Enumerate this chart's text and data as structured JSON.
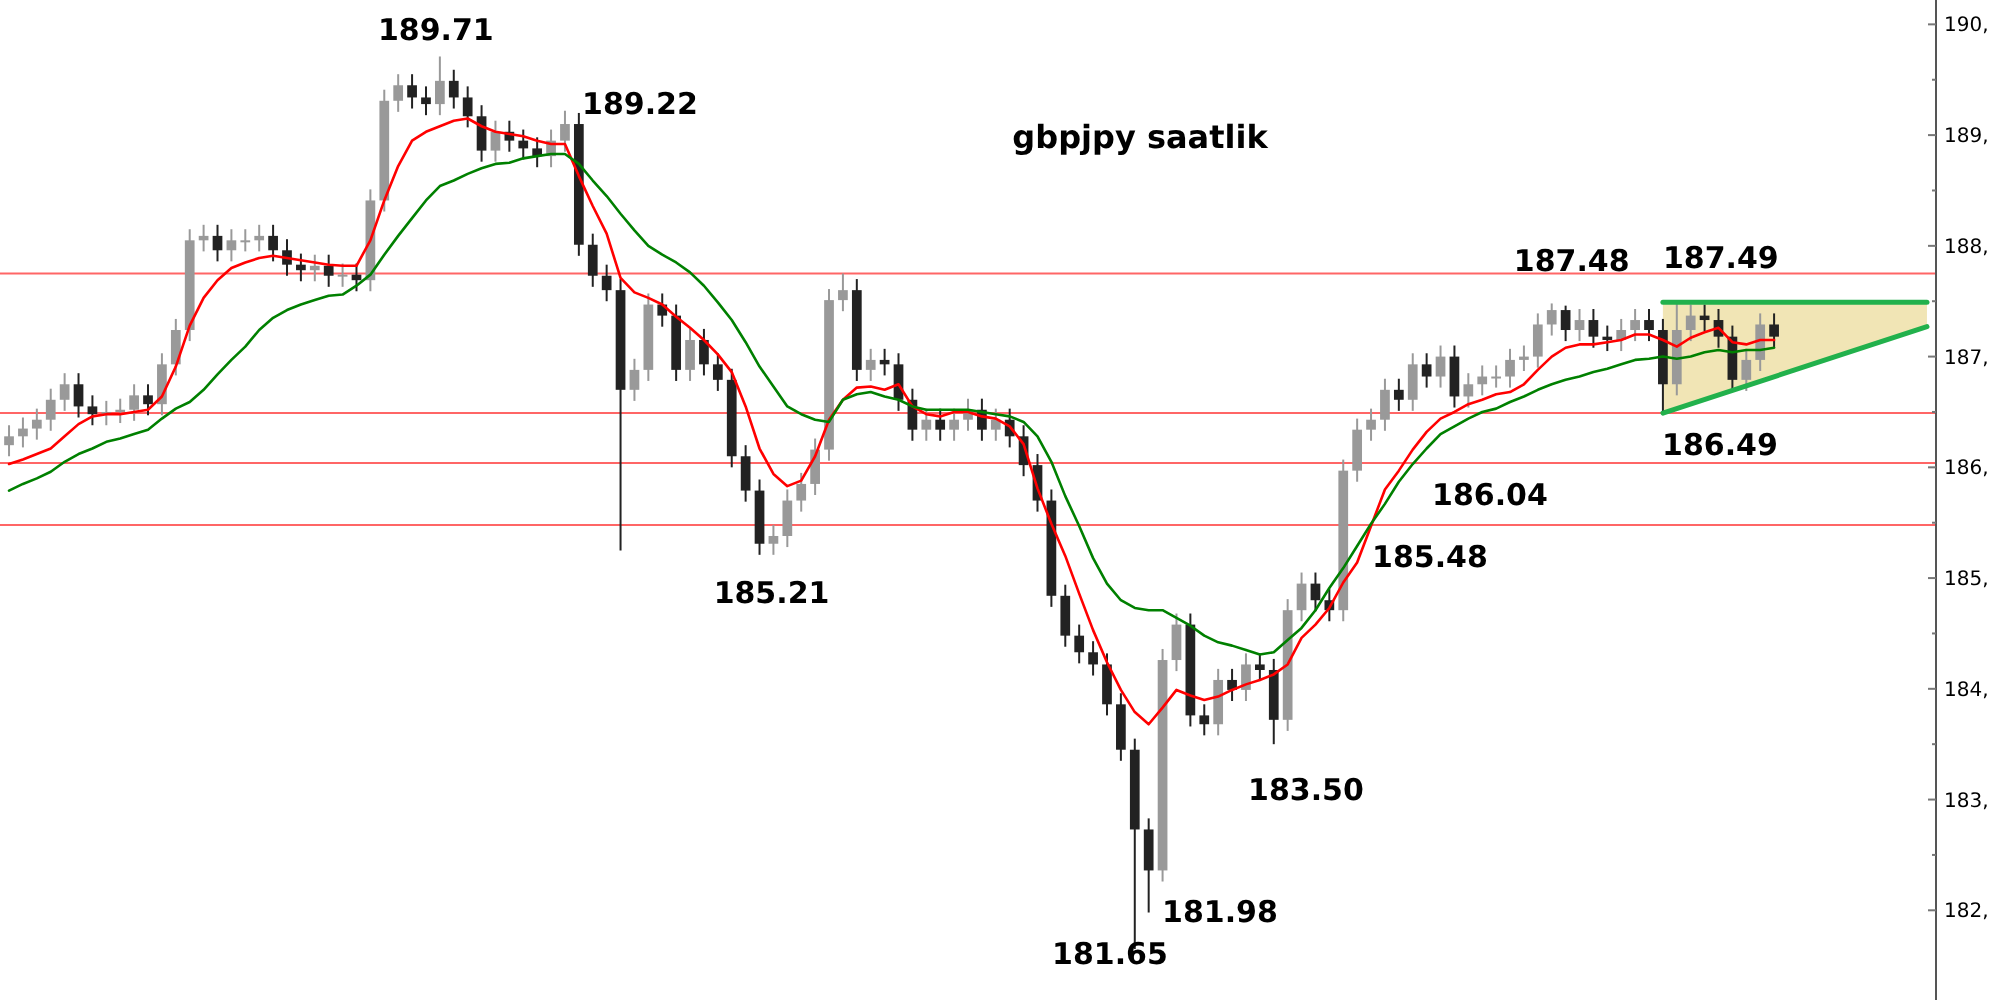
{
  "chart_data": {
    "type": "candlestick",
    "title": "gbpjpy saatlik",
    "categories": [
      null,
      null,
      null,
      null,
      null,
      null,
      null,
      null,
      null,
      null,
      null,
      null,
      null,
      null,
      null,
      null,
      null,
      null,
      null,
      null,
      null,
      null,
      null,
      null,
      null,
      null,
      null,
      null,
      null,
      null,
      null,
      null,
      null,
      null,
      null,
      null,
      null,
      null,
      null,
      null,
      null,
      null,
      null,
      null,
      null,
      null,
      null,
      null,
      null,
      null,
      null,
      null,
      null,
      null,
      null,
      null,
      null,
      null,
      null,
      null,
      null,
      null,
      null,
      null,
      null,
      null,
      null,
      null,
      null,
      null,
      null,
      null,
      null,
      null,
      null,
      null,
      null,
      null,
      null,
      null,
      null,
      null,
      null,
      null,
      null,
      null,
      null,
      null,
      null,
      null,
      null,
      null,
      null,
      null,
      null,
      null,
      null,
      null,
      null,
      null,
      null,
      null,
      null,
      null,
      null,
      null,
      null,
      null,
      null,
      null,
      null,
      null,
      null,
      null,
      null,
      null,
      null,
      null,
      null,
      null,
      null,
      null,
      null,
      null,
      null,
      null,
      null,
      null,
      null,
      null,
      null,
      null,
      null,
      null,
      null,
      null,
      null,
      null,
      null
    ],
    "ohlc": [
      [
        186.2,
        186.38,
        186.1,
        186.28
      ],
      [
        186.28,
        186.45,
        186.18,
        186.35
      ],
      [
        186.35,
        186.53,
        186.25,
        186.43
      ],
      [
        186.43,
        186.71,
        186.33,
        186.61
      ],
      [
        186.61,
        186.85,
        186.51,
        186.75
      ],
      [
        186.75,
        186.85,
        186.45,
        186.55
      ],
      [
        186.55,
        186.65,
        186.38,
        186.48
      ],
      [
        186.48,
        186.6,
        186.38,
        186.5
      ],
      [
        186.5,
        186.62,
        186.4,
        186.52
      ],
      [
        186.52,
        186.75,
        186.42,
        186.65
      ],
      [
        186.65,
        186.75,
        186.47,
        186.57
      ],
      [
        186.57,
        187.03,
        186.47,
        186.93
      ],
      [
        186.93,
        187.34,
        186.83,
        187.24
      ],
      [
        187.24,
        188.15,
        187.14,
        188.05
      ],
      [
        188.05,
        188.19,
        187.95,
        188.09
      ],
      [
        188.09,
        188.19,
        187.86,
        187.96
      ],
      [
        187.96,
        188.15,
        187.86,
        188.05
      ],
      [
        188.05,
        188.15,
        187.95,
        188.05
      ],
      [
        188.05,
        188.19,
        187.95,
        188.09
      ],
      [
        188.09,
        188.19,
        187.86,
        187.96
      ],
      [
        187.96,
        188.06,
        187.73,
        187.83
      ],
      [
        187.83,
        187.93,
        187.68,
        187.78
      ],
      [
        187.78,
        187.92,
        187.68,
        187.82
      ],
      [
        187.82,
        187.92,
        187.63,
        187.73
      ],
      [
        187.73,
        187.84,
        187.63,
        187.74
      ],
      [
        187.74,
        187.84,
        187.59,
        187.69
      ],
      [
        187.69,
        188.51,
        187.59,
        188.41
      ],
      [
        188.41,
        189.41,
        188.31,
        189.31
      ],
      [
        189.31,
        189.55,
        189.21,
        189.45
      ],
      [
        189.45,
        189.55,
        189.24,
        189.34
      ],
      [
        189.34,
        189.44,
        189.18,
        189.28
      ],
      [
        189.28,
        189.71,
        189.18,
        189.49
      ],
      [
        189.49,
        189.59,
        189.24,
        189.34
      ],
      [
        189.34,
        189.44,
        189.07,
        189.17
      ],
      [
        189.17,
        189.27,
        188.76,
        188.86
      ],
      [
        188.86,
        189.13,
        188.76,
        189.03
      ],
      [
        189.03,
        189.13,
        188.85,
        188.95
      ],
      [
        188.95,
        189.05,
        188.78,
        188.88
      ],
      [
        188.88,
        188.98,
        188.71,
        188.81
      ],
      [
        188.81,
        189.05,
        188.71,
        188.95
      ],
      [
        188.95,
        189.22,
        188.85,
        189.1
      ],
      [
        189.1,
        189.2,
        187.91,
        188.01
      ],
      [
        188.01,
        188.11,
        187.63,
        187.73
      ],
      [
        187.73,
        187.83,
        187.5,
        187.6
      ],
      [
        187.6,
        187.7,
        185.25,
        186.7
      ],
      [
        186.7,
        186.98,
        186.6,
        186.88
      ],
      [
        186.88,
        187.57,
        186.78,
        187.47
      ],
      [
        187.47,
        187.57,
        187.27,
        187.37
      ],
      [
        187.37,
        187.47,
        186.78,
        186.88
      ],
      [
        186.88,
        187.25,
        186.78,
        187.15
      ],
      [
        187.15,
        187.25,
        186.83,
        186.93
      ],
      [
        186.93,
        187.03,
        186.69,
        186.79
      ],
      [
        186.79,
        186.89,
        186.0,
        186.1
      ],
      [
        186.1,
        186.2,
        185.69,
        185.79
      ],
      [
        185.79,
        185.89,
        185.21,
        185.31
      ],
      [
        185.31,
        185.48,
        185.21,
        185.38
      ],
      [
        185.38,
        185.8,
        185.28,
        185.7
      ],
      [
        185.7,
        185.95,
        185.6,
        185.85
      ],
      [
        185.85,
        186.26,
        185.75,
        186.16
      ],
      [
        186.16,
        187.61,
        186.06,
        187.51
      ],
      [
        187.51,
        187.75,
        187.41,
        187.6
      ],
      [
        187.6,
        187.7,
        186.78,
        186.88
      ],
      [
        186.88,
        187.07,
        186.78,
        186.97
      ],
      [
        186.97,
        187.07,
        186.83,
        186.93
      ],
      [
        186.93,
        187.03,
        186.51,
        186.61
      ],
      [
        186.61,
        186.71,
        186.24,
        186.34
      ],
      [
        186.34,
        186.53,
        186.24,
        186.43
      ],
      [
        186.43,
        186.53,
        186.24,
        186.34
      ],
      [
        186.34,
        186.53,
        186.24,
        186.43
      ],
      [
        186.43,
        186.62,
        186.33,
        186.52
      ],
      [
        186.52,
        186.62,
        186.24,
        186.34
      ],
      [
        186.34,
        186.53,
        186.24,
        186.43
      ],
      [
        186.43,
        186.53,
        186.18,
        186.28
      ],
      [
        186.28,
        186.38,
        185.92,
        186.02
      ],
      [
        186.02,
        186.12,
        185.6,
        185.7
      ],
      [
        185.7,
        185.8,
        184.74,
        184.84
      ],
      [
        184.84,
        184.94,
        184.38,
        184.48
      ],
      [
        184.48,
        184.58,
        184.23,
        184.33
      ],
      [
        184.33,
        184.43,
        184.12,
        184.22
      ],
      [
        184.22,
        184.32,
        183.76,
        183.86
      ],
      [
        183.86,
        183.96,
        183.35,
        183.45
      ],
      [
        183.45,
        183.55,
        181.65,
        182.73
      ],
      [
        182.73,
        182.83,
        181.98,
        182.36
      ],
      [
        182.36,
        184.36,
        182.26,
        184.26
      ],
      [
        184.26,
        184.68,
        184.16,
        184.58
      ],
      [
        184.58,
        184.68,
        183.66,
        183.76
      ],
      [
        183.76,
        183.86,
        183.58,
        183.68
      ],
      [
        183.68,
        184.18,
        183.58,
        184.08
      ],
      [
        184.08,
        184.18,
        183.89,
        183.99
      ],
      [
        183.99,
        184.32,
        183.89,
        184.22
      ],
      [
        184.22,
        184.32,
        184.07,
        184.17
      ],
      [
        184.17,
        184.27,
        183.5,
        183.72
      ],
      [
        183.72,
        184.81,
        183.62,
        184.71
      ],
      [
        184.71,
        185.05,
        184.61,
        184.95
      ],
      [
        184.95,
        185.05,
        184.7,
        184.8
      ],
      [
        184.8,
        184.9,
        184.61,
        184.71
      ],
      [
        184.71,
        186.07,
        184.61,
        185.97
      ],
      [
        185.97,
        186.44,
        185.87,
        186.34
      ],
      [
        186.34,
        186.53,
        186.24,
        186.43
      ],
      [
        186.43,
        186.8,
        186.33,
        186.7
      ],
      [
        186.7,
        186.8,
        186.51,
        186.61
      ],
      [
        186.61,
        187.03,
        186.51,
        186.93
      ],
      [
        186.93,
        187.03,
        186.72,
        186.82
      ],
      [
        186.82,
        187.1,
        186.72,
        187.0
      ],
      [
        187.0,
        187.1,
        186.54,
        186.64
      ],
      [
        186.64,
        186.85,
        186.54,
        186.75
      ],
      [
        186.75,
        186.92,
        186.65,
        186.82
      ],
      [
        186.82,
        186.92,
        186.72,
        186.82
      ],
      [
        186.82,
        187.07,
        186.72,
        186.97
      ],
      [
        186.97,
        187.1,
        186.87,
        187.0
      ],
      [
        187.0,
        187.39,
        186.9,
        187.29
      ],
      [
        187.29,
        187.48,
        187.19,
        187.42
      ],
      [
        187.42,
        187.46,
        187.14,
        187.24
      ],
      [
        187.24,
        187.43,
        187.14,
        187.33
      ],
      [
        187.33,
        187.43,
        187.08,
        187.18
      ],
      [
        187.18,
        187.28,
        187.05,
        187.15
      ],
      [
        187.15,
        187.34,
        187.05,
        187.24
      ],
      [
        187.24,
        187.43,
        187.14,
        187.33
      ],
      [
        187.33,
        187.43,
        187.14,
        187.24
      ],
      [
        187.24,
        187.34,
        186.49,
        186.75
      ],
      [
        186.75,
        187.49,
        186.65,
        187.24
      ],
      [
        187.24,
        187.47,
        187.14,
        187.37
      ],
      [
        187.37,
        187.47,
        187.23,
        187.33
      ],
      [
        187.33,
        187.43,
        187.08,
        187.18
      ],
      [
        187.18,
        187.28,
        186.69,
        186.79
      ],
      [
        186.79,
        187.07,
        186.69,
        186.97
      ],
      [
        186.97,
        187.39,
        186.87,
        187.29
      ],
      [
        187.29,
        187.39,
        187.08,
        187.18
      ],
      null,
      null,
      null,
      null,
      null,
      null,
      null,
      null,
      null,
      null,
      null
    ],
    "series": [
      {
        "type": "line",
        "color": "#ff0000",
        "values": [
          186.03,
          186.07,
          186.12,
          186.17,
          186.28,
          186.39,
          186.46,
          186.48,
          186.48,
          186.5,
          186.52,
          186.64,
          186.91,
          187.28,
          187.53,
          187.69,
          187.8,
          187.85,
          187.89,
          187.91,
          187.89,
          187.87,
          187.85,
          187.83,
          187.82,
          187.82,
          188.05,
          188.41,
          188.72,
          188.95,
          189.03,
          189.08,
          189.13,
          189.15,
          189.08,
          189.03,
          189.01,
          188.99,
          188.95,
          188.92,
          188.92,
          188.63,
          188.36,
          188.11,
          187.71,
          187.58,
          187.53,
          187.47,
          187.36,
          187.26,
          187.15,
          187.02,
          186.86,
          186.55,
          186.17,
          185.94,
          185.83,
          185.88,
          186.1,
          186.43,
          186.61,
          186.72,
          186.73,
          186.7,
          186.75,
          186.55,
          186.48,
          186.46,
          186.5,
          186.5,
          186.46,
          186.44,
          186.37,
          186.21,
          185.81,
          185.49,
          185.2,
          184.86,
          184.53,
          184.24,
          183.99,
          183.79,
          183.68,
          183.83,
          183.99,
          183.94,
          183.9,
          183.93,
          183.99,
          184.04,
          184.08,
          184.13,
          184.22,
          184.46,
          184.58,
          184.73,
          184.96,
          185.14,
          185.47,
          185.8,
          185.97,
          186.16,
          186.32,
          186.44,
          186.5,
          186.57,
          186.61,
          186.66,
          186.68,
          186.75,
          186.88,
          187.0,
          187.08,
          187.11,
          187.11,
          187.13,
          187.15,
          187.2,
          187.2,
          187.15,
          187.09,
          187.17,
          187.22,
          187.26,
          187.13,
          187.11,
          187.15,
          187.15,
          null,
          null,
          null,
          null,
          null,
          null,
          null,
          null,
          null,
          null,
          null
        ]
      },
      {
        "type": "line",
        "color": "#008000",
        "values": [
          185.79,
          185.85,
          185.9,
          185.96,
          186.05,
          186.12,
          186.17,
          186.23,
          186.26,
          186.3,
          186.34,
          186.44,
          186.53,
          186.59,
          186.7,
          186.84,
          186.97,
          187.09,
          187.24,
          187.35,
          187.42,
          187.47,
          187.51,
          187.55,
          187.56,
          187.64,
          187.74,
          187.92,
          188.09,
          188.25,
          188.41,
          188.54,
          188.59,
          188.65,
          188.7,
          188.74,
          188.75,
          188.79,
          188.81,
          188.83,
          188.83,
          188.74,
          188.59,
          188.45,
          188.29,
          188.14,
          188.0,
          187.92,
          187.85,
          187.76,
          187.64,
          187.49,
          187.33,
          187.13,
          186.91,
          186.73,
          186.55,
          186.48,
          186.43,
          186.41,
          186.61,
          186.66,
          186.68,
          186.64,
          186.61,
          186.55,
          186.52,
          186.52,
          186.52,
          186.52,
          186.5,
          186.48,
          186.46,
          186.41,
          186.28,
          186.05,
          185.74,
          185.47,
          185.18,
          184.95,
          184.8,
          184.73,
          184.71,
          184.71,
          184.64,
          184.57,
          184.48,
          184.42,
          184.39,
          184.35,
          184.31,
          184.33,
          184.44,
          184.55,
          184.71,
          184.91,
          185.09,
          185.29,
          185.49,
          185.67,
          185.87,
          186.03,
          186.17,
          186.3,
          186.37,
          186.44,
          186.5,
          186.53,
          186.59,
          186.64,
          186.7,
          186.75,
          186.79,
          186.82,
          186.86,
          186.89,
          186.93,
          186.97,
          186.98,
          187.0,
          186.98,
          187.0,
          187.04,
          187.06,
          187.04,
          187.06,
          187.06,
          187.08,
          null,
          null,
          null,
          null,
          null,
          null,
          null,
          null,
          null,
          null,
          null
        ]
      },
      {
        "type": "line",
        "color": "#22b14c",
        "values": [
          null,
          null,
          null,
          null,
          null,
          null,
          null,
          null,
          null,
          null,
          null,
          null,
          null,
          null,
          null,
          null,
          null,
          null,
          null,
          null,
          null,
          null,
          null,
          null,
          null,
          null,
          null,
          null,
          null,
          null,
          null,
          null,
          null,
          null,
          null,
          null,
          null,
          null,
          null,
          null,
          null,
          null,
          null,
          null,
          null,
          null,
          null,
          null,
          null,
          null,
          null,
          null,
          null,
          null,
          null,
          null,
          null,
          null,
          null,
          null,
          null,
          null,
          null,
          null,
          null,
          null,
          null,
          null,
          null,
          null,
          null,
          null,
          null,
          null,
          null,
          null,
          null,
          null,
          null,
          null,
          null,
          null,
          null,
          null,
          null,
          null,
          null,
          null,
          null,
          null,
          null,
          null,
          null,
          null,
          null,
          null,
          null,
          null,
          null,
          null,
          null,
          null,
          null,
          null,
          null,
          null,
          null,
          null,
          null,
          null,
          null,
          null,
          null,
          null,
          null,
          null,
          null,
          null,
          null,
          187.49,
          null,
          null,
          null,
          null,
          null,
          null,
          null,
          null,
          null,
          null,
          null,
          null,
          null,
          null,
          null,
          null,
          null,
          null,
          187.49
        ]
      },
      {
        "type": "line",
        "color": "#22b14c",
        "values": [
          null,
          null,
          null,
          null,
          null,
          null,
          null,
          null,
          null,
          null,
          null,
          null,
          null,
          null,
          null,
          null,
          null,
          null,
          null,
          null,
          null,
          null,
          null,
          null,
          null,
          null,
          null,
          null,
          null,
          null,
          null,
          null,
          null,
          null,
          null,
          null,
          null,
          null,
          null,
          null,
          null,
          null,
          null,
          null,
          null,
          null,
          null,
          null,
          null,
          null,
          null,
          null,
          null,
          null,
          null,
          null,
          null,
          null,
          null,
          null,
          null,
          null,
          null,
          null,
          null,
          null,
          null,
          null,
          null,
          null,
          null,
          null,
          null,
          null,
          null,
          null,
          null,
          null,
          null,
          null,
          null,
          null,
          null,
          null,
          null,
          null,
          null,
          null,
          null,
          null,
          null,
          null,
          null,
          null,
          null,
          null,
          null,
          null,
          null,
          null,
          null,
          null,
          null,
          null,
          null,
          null,
          null,
          null,
          null,
          null,
          null,
          null,
          null,
          null,
          null,
          null,
          null,
          null,
          null,
          186.49,
          null,
          null,
          null,
          null,
          null,
          null,
          null,
          null,
          null,
          null,
          null,
          null,
          null,
          null,
          null,
          null,
          null,
          null,
          187.27
        ]
      }
    ],
    "ylim": [
      181.19,
      190.22
    ],
    "yticks": [
      {
        "value": 182,
        "label": "182,"
      },
      {
        "value": 182.5,
        "label": null
      },
      {
        "value": 183,
        "label": "183,"
      },
      {
        "value": 183.5,
        "label": null
      },
      {
        "value": 184,
        "label": "184,"
      },
      {
        "value": 184.5,
        "label": null
      },
      {
        "value": 185,
        "label": "185,"
      },
      {
        "value": 185.5,
        "label": null
      },
      {
        "value": 186,
        "label": "186,"
      },
      {
        "value": 186.5,
        "label": null
      },
      {
        "value": 187,
        "label": "187,"
      },
      {
        "value": 187.5,
        "label": null
      },
      {
        "value": 188,
        "label": "188,"
      },
      {
        "value": 188.5,
        "label": null
      },
      {
        "value": 189,
        "label": "189,"
      },
      {
        "value": 189.5,
        "label": null
      },
      {
        "value": 190,
        "label": "190,"
      }
    ],
    "tick_labels": "y",
    "ref_lines": [
      {
        "axis": "y",
        "value": 187.75,
        "color": "#ff6666"
      },
      {
        "axis": "y",
        "value": 186.49,
        "label": "186.49",
        "color": "#ff6666"
      },
      {
        "axis": "y",
        "value": 186.04,
        "label": "186.04",
        "color": "#ff6666"
      },
      {
        "axis": "y",
        "value": 185.48,
        "label": "185.48",
        "color": "#ff6666"
      }
    ],
    "annotations": [
      {
        "text": "189.71",
        "y": 189.71
      },
      "189.22",
      {
        "text": "185.21",
        "y": 185.21
      },
      "181.65",
      "181.98",
      "183.50",
      {
        "text": "187.48",
        "y": 187.48
      },
      {
        "text": "187.49",
        "y": 187.49
      }
    ]
  }
}
